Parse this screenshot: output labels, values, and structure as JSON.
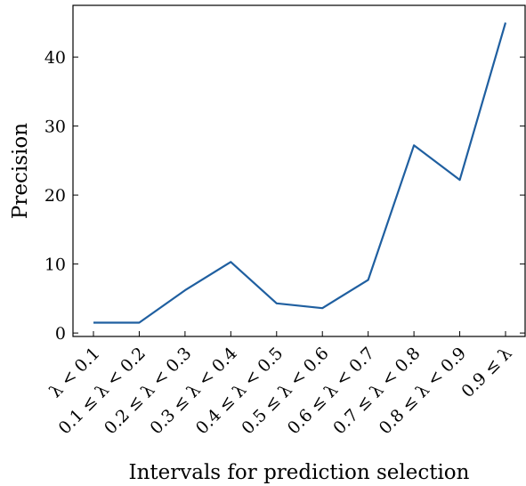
{
  "chart_data": {
    "type": "line",
    "title": "",
    "xlabel": "Intervals for prediction selection",
    "ylabel": "Precision",
    "categories": [
      "λ < 0.1",
      "0.1 ≤ λ < 0.2",
      "0.2 ≤ λ < 0.3",
      "0.3 ≤ λ < 0.4",
      "0.4 ≤ λ < 0.5",
      "0.5 ≤ λ < 0.6",
      "0.6 ≤ λ < 0.7",
      "0.7 ≤ λ < 0.8",
      "0.8 ≤ λ < 0.9",
      "0.9 ≤ λ"
    ],
    "series": [
      {
        "values": [
          1.5,
          1.5,
          6.2,
          10.3,
          4.3,
          3.6,
          7.7,
          27.2,
          22.2,
          45.0
        ]
      }
    ],
    "ylim": [
      -0.5,
      47.5
    ],
    "yticks": [
      0,
      10,
      20,
      30,
      40
    ],
    "ytick_labels": [
      "0",
      "10",
      "20",
      "30",
      "40"
    ],
    "grid": false,
    "line_color": "#1f5fa0"
  }
}
